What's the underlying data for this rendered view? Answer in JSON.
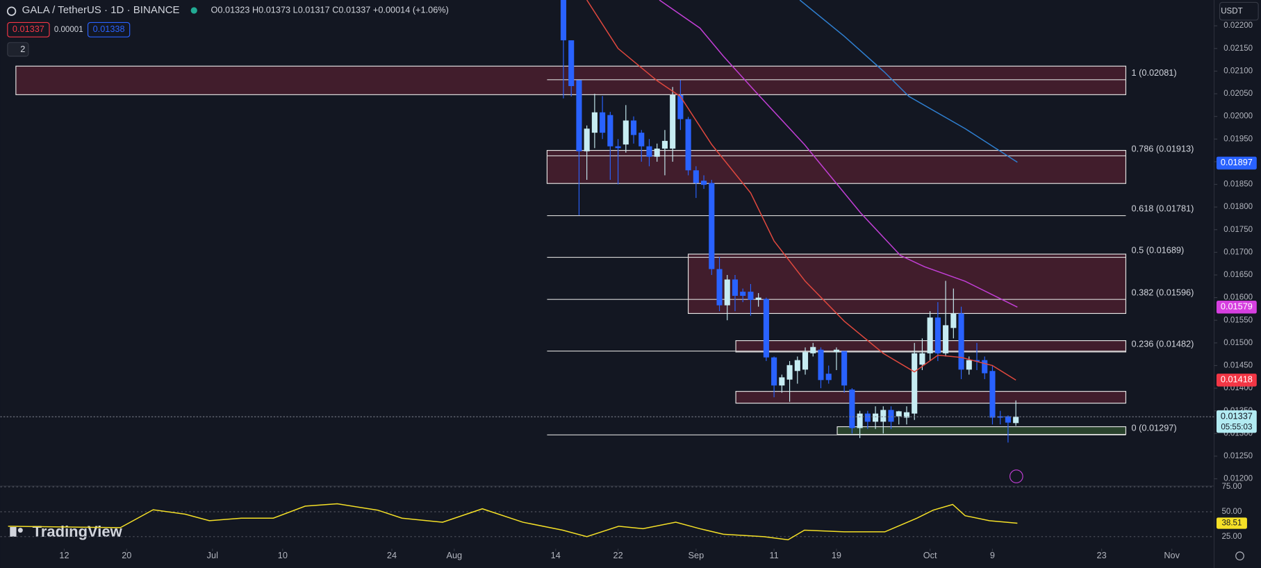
{
  "chart_data": {
    "type": "candlestick",
    "title": "GALA / TetherUS · 1D · BINANCE",
    "ohlc_text": "O0.01323 H0.01373 L0.01317 C0.01337 +0.00014 (+1.06%)",
    "up_color": "#c6ecf2",
    "down_color": "#2962ff",
    "x": [
      1,
      2,
      3,
      4,
      5,
      6,
      7,
      8,
      9,
      10,
      11,
      12,
      13,
      14,
      15,
      16,
      17,
      18,
      19,
      20,
      21,
      22,
      23,
      24,
      25,
      26,
      27,
      28,
      29,
      30,
      31,
      32,
      33,
      34,
      35,
      36,
      37,
      38,
      39,
      40,
      41,
      42,
      43,
      44,
      45,
      46,
      47,
      48,
      49,
      50,
      51,
      52,
      53,
      54,
      55,
      56,
      57,
      58,
      59
    ],
    "open": [
      0.0226,
      0.02168,
      0.0208,
      0.01923,
      0.01964,
      0.02009,
      0.02003,
      0.01934,
      0.01938,
      0.01991,
      0.01964,
      0.01934,
      0.01911,
      0.01929,
      0.01929,
      0.02047,
      0.01994,
      0.01881,
      0.01858,
      0.01853,
      0.01663,
      0.01583,
      0.0164,
      0.01613,
      0.01613,
      0.01595,
      0.01597,
      0.01468,
      0.01406,
      0.01419,
      0.01438,
      0.01441,
      0.01477,
      0.01485,
      0.01432,
      0.0148,
      0.01482,
      0.01397,
      0.01312,
      0.01344,
      0.01326,
      0.01326,
      0.01352,
      0.01338,
      0.01335,
      0.01344,
      0.01452,
      0.01477,
      0.01556,
      0.01477,
      0.01533,
      0.01565,
      0.01441,
      0.01462,
      0.01462,
      0.01438,
      0.01338,
      0.01338,
      0.01323
    ],
    "high": [
      0.0226,
      0.02168,
      0.0208,
      0.0198,
      0.0205,
      0.02045,
      0.0201,
      0.0195,
      0.02025,
      0.02,
      0.0197,
      0.0195,
      0.0194,
      0.0197,
      0.02065,
      0.0208,
      0.01999,
      0.0189,
      0.0187,
      0.0186,
      0.0169,
      0.0165,
      0.0165,
      0.0162,
      0.0163,
      0.0161,
      0.016,
      0.0147,
      0.0143,
      0.0146,
      0.0147,
      0.0149,
      0.015,
      0.0149,
      0.0145,
      0.0149,
      0.0148,
      0.014,
      0.0135,
      0.0135,
      0.0136,
      0.0136,
      0.0136,
      0.0135,
      0.0136,
      0.015,
      0.0151,
      0.0157,
      0.0159,
      0.01637,
      0.0162,
      0.0158,
      0.0147,
      0.015,
      0.0147,
      0.0145,
      0.0135,
      0.0134,
      0.01373
    ],
    "low": [
      0.0204,
      0.02044,
      0.01782,
      0.0186,
      0.0193,
      0.0195,
      0.0186,
      0.0185,
      0.0192,
      0.0194,
      0.019,
      0.0189,
      0.019,
      0.0187,
      0.019,
      0.0197,
      0.0187,
      0.0182,
      0.0184,
      0.0165,
      0.0157,
      0.0155,
      0.0157,
      0.0159,
      0.0156,
      0.0158,
      0.0146,
      0.0138,
      0.0139,
      0.0137,
      0.0141,
      0.0143,
      0.0147,
      0.014,
      0.0141,
      0.0144,
      0.0139,
      0.013,
      0.0129,
      0.0131,
      0.0131,
      0.013,
      0.0131,
      0.0132,
      0.0132,
      0.0133,
      0.0144,
      0.0146,
      0.0146,
      0.0147,
      0.0151,
      0.0142,
      0.0143,
      0.0144,
      0.0142,
      0.0132,
      0.0132,
      0.0128,
      0.01317
    ],
    "close": [
      0.02168,
      0.02067,
      0.01923,
      0.01973,
      0.02009,
      0.01964,
      0.01934,
      0.0193,
      0.01991,
      0.01959,
      0.01934,
      0.01911,
      0.01929,
      0.01946,
      0.02047,
      0.01994,
      0.01881,
      0.01853,
      0.01849,
      0.01663,
      0.01583,
      0.0164,
      0.01604,
      0.01604,
      0.01595,
      0.016,
      0.01468,
      0.01406,
      0.01424,
      0.01451,
      0.01462,
      0.0148,
      0.01491,
      0.01418,
      0.01418,
      0.01485,
      0.01406,
      0.01312,
      0.01344,
      0.01326,
      0.01344,
      0.01352,
      0.01326,
      0.01349,
      0.01347,
      0.01477,
      0.01477,
      0.01556,
      0.01477,
      0.01539,
      0.01565,
      0.01441,
      0.01462,
      0.01459,
      0.01433,
      0.01335,
      0.01335,
      0.01324,
      0.01337
    ],
    "lines": [
      {
        "color": "#e0483e",
        "x": [
          4,
          8,
          13,
          16,
          20,
          25,
          28,
          32,
          37,
          42,
          46,
          49,
          52,
          56,
          59
        ],
        "values": [
          0.02257,
          0.0215,
          0.02079,
          0.02044,
          0.01938,
          0.01831,
          0.01725,
          0.01636,
          0.01548,
          0.01477,
          0.01436,
          0.01473,
          0.01468,
          0.0145,
          0.01418
        ]
      },
      {
        "color": "#c23fd6",
        "x": [
          13.3,
          18.5,
          21.5,
          25.7,
          31.9,
          39.1,
          44.2,
          47.3,
          52.5,
          59.2
        ],
        "values": [
          0.02257,
          0.02195,
          0.02133,
          0.02053,
          0.01938,
          0.01787,
          0.01693,
          0.01668,
          0.01636,
          0.01579
        ]
      },
      {
        "color": "#2f7fd0",
        "x": [
          31.3,
          37,
          42.2,
          45.3,
          52.5,
          59.2
        ],
        "values": [
          0.02257,
          0.02177,
          0.02097,
          0.02044,
          0.01973,
          0.01899
        ]
      }
    ],
    "zones": [
      {
        "from": -69.2,
        "to": 73.1,
        "low": 0.02048,
        "high": 0.02111,
        "color": "#4a1f2e"
      },
      {
        "from": -1.1,
        "to": 73.1,
        "low": 0.01852,
        "high": 0.01925,
        "color": "#4a1f2e"
      },
      {
        "from": 17,
        "to": 73.1,
        "low": 0.01565,
        "high": 0.01696,
        "color": "#4a1f2e"
      },
      {
        "from": 23.1,
        "to": 73.1,
        "low": 0.0148,
        "high": 0.01505,
        "color": "#4a1f2e"
      },
      {
        "from": 23.1,
        "to": 73.1,
        "low": 0.01367,
        "high": 0.01393,
        "color": "#4a1f2e"
      },
      {
        "from": 36.1,
        "to": 73.1,
        "low": 0.01298,
        "high": 0.01315,
        "color": "#2e4a2e"
      }
    ],
    "fib": {
      "from": -1.1,
      "to": 73.1,
      "levels": [
        {
          "value": 0.02081,
          "label": "1 (0.02081)"
        },
        {
          "value": 0.01913,
          "label": "0.786 (0.01913)"
        },
        {
          "value": 0.01781,
          "label": "0.618 (0.01781)"
        },
        {
          "value": 0.01689,
          "label": "0.5 (0.01689)"
        },
        {
          "value": 0.01596,
          "label": "0.382 (0.01596)"
        },
        {
          "value": 0.01482,
          "label": "0.236 (0.01482)"
        },
        {
          "value": 0.01297,
          "label": "0 (0.01297)"
        }
      ]
    },
    "price_tags": [
      {
        "value": 0.01897,
        "label": "0.01897",
        "color": "#2962ff"
      },
      {
        "value": 0.01579,
        "label": "0.01579",
        "color": "#d63fe0"
      },
      {
        "value": 0.01418,
        "label": "0.01418",
        "color": "#f23645"
      }
    ],
    "last": {
      "value": 0.01337,
      "label": "0.01337",
      "countdown": "05:55:03"
    },
    "xlim": [
      -71.2,
      83.9
    ],
    "ylim": [
      0.01184,
      0.02257
    ],
    "xticks": [
      {
        "value": -63,
        "label": "12"
      },
      {
        "value": -55,
        "label": "20"
      },
      {
        "value": -44,
        "label": "Jul"
      },
      {
        "value": -35,
        "label": "10"
      },
      {
        "value": -21,
        "label": "24"
      },
      {
        "value": -13,
        "label": "Aug"
      },
      {
        "value": 0,
        "label": "14"
      },
      {
        "value": 8,
        "label": "22"
      },
      {
        "value": 18,
        "label": "Sep"
      },
      {
        "value": 28,
        "label": "11"
      },
      {
        "value": 36,
        "label": "19"
      },
      {
        "value": 48,
        "label": "Oct"
      },
      {
        "value": 56,
        "label": "9"
      },
      {
        "value": 70,
        "label": "23"
      },
      {
        "value": 79,
        "label": "Nov"
      }
    ],
    "yticks": [
      {
        "value": 0.012,
        "label": "0.01200"
      },
      {
        "value": 0.0125,
        "label": "0.01250"
      },
      {
        "value": 0.013,
        "label": "0.01300"
      },
      {
        "value": 0.0135,
        "label": "0.01350"
      },
      {
        "value": 0.014,
        "label": "0.01400"
      },
      {
        "value": 0.0145,
        "label": "0.01450"
      },
      {
        "value": 0.015,
        "label": "0.01500"
      },
      {
        "value": 0.0155,
        "label": "0.01550"
      },
      {
        "value": 0.016,
        "label": "0.01600"
      },
      {
        "value": 0.0165,
        "label": "0.01650"
      },
      {
        "value": 0.017,
        "label": "0.01700"
      },
      {
        "value": 0.0175,
        "label": "0.01750"
      },
      {
        "value": 0.018,
        "label": "0.01800"
      },
      {
        "value": 0.0185,
        "label": "0.01850"
      },
      {
        "value": 0.019,
        "label": "0.01900"
      },
      {
        "value": 0.0195,
        "label": "0.01950"
      },
      {
        "value": 0.02,
        "label": "0.02000"
      },
      {
        "value": 0.0205,
        "label": "0.02050"
      },
      {
        "value": 0.021,
        "label": "0.02100"
      },
      {
        "value": 0.0215,
        "label": "0.02150"
      },
      {
        "value": 0.022,
        "label": "0.02200"
      }
    ],
    "rsi": {
      "color": "#f5e027",
      "x": [
        -70.2,
        -55.8,
        -51.6,
        -47.5,
        -44.4,
        -40.3,
        -36.2,
        -32.1,
        -28,
        -22.8,
        -19.7,
        -14.5,
        -9.4,
        -4.2,
        0.9,
        4,
        8.1,
        11.2,
        15.4,
        18.5,
        21.5,
        26.7,
        29.8,
        31.9,
        37,
        42.2,
        46.3,
        48.4,
        50.9,
        52.5,
        55.6,
        59.2
      ],
      "values": [
        35.5,
        34,
        52,
        47.6,
        41,
        43.5,
        43.5,
        55.6,
        58,
        51.6,
        43.5,
        39.5,
        53,
        39.5,
        31.5,
        25,
        35.5,
        33,
        39.5,
        33,
        27.4,
        25,
        21.8,
        31.5,
        29.8,
        29.8,
        43.5,
        51.6,
        57.3,
        46,
        41,
        38.51
      ],
      "ylim": [
        15.3,
        75.8
      ],
      "yticks": [
        {
          "value": 75,
          "label": "75.00"
        },
        {
          "value": 50,
          "label": "50.00"
        },
        {
          "value": 25,
          "label": "25.00"
        }
      ],
      "tag": 38.51
    }
  },
  "ui": {
    "bid": "0.01337",
    "spread": "0.00001",
    "ask": "0.01338",
    "indicators": "2",
    "currency": "USDT",
    "brand": "TradingView"
  }
}
